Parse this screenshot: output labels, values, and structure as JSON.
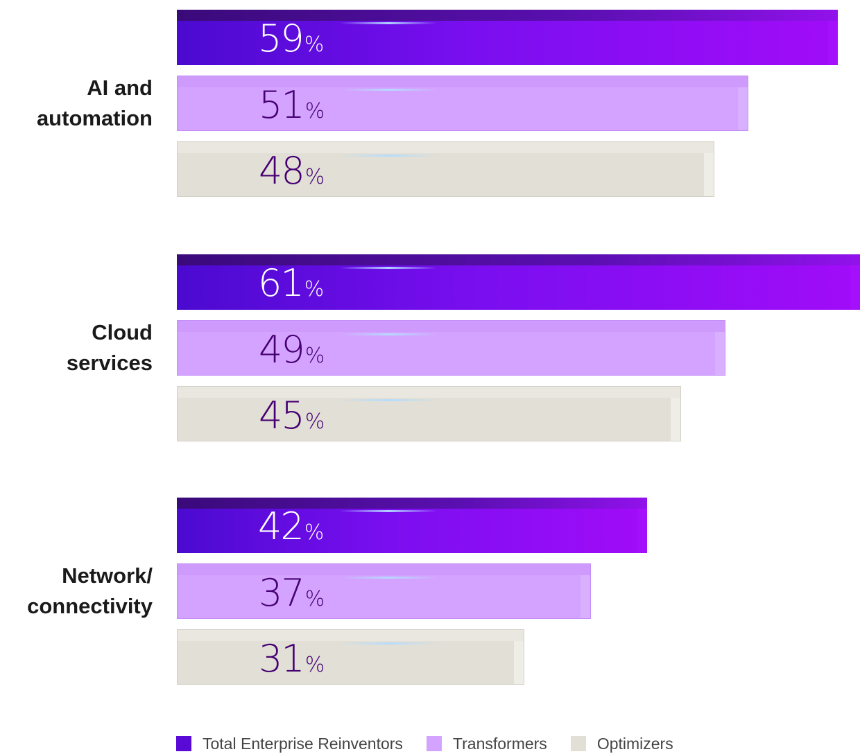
{
  "chart_data": {
    "type": "bar",
    "orientation": "horizontal",
    "categories": [
      "AI and\nautomation",
      "Cloud\nservices",
      "Network/\nconnectivity"
    ],
    "series": [
      {
        "name": "Total Enterprise Reinventors",
        "values": [
          59,
          61,
          42
        ],
        "color": "#6a0bea"
      },
      {
        "name": "Transformers",
        "values": [
          51,
          49,
          37
        ],
        "color": "#d4a3ff"
      },
      {
        "name": "Optimizers",
        "values": [
          48,
          45,
          31
        ],
        "color": "#e1dfd6"
      }
    ],
    "value_suffix": "%",
    "xlim": [
      0,
      61
    ],
    "grid": false,
    "legend": "bottom"
  }
}
